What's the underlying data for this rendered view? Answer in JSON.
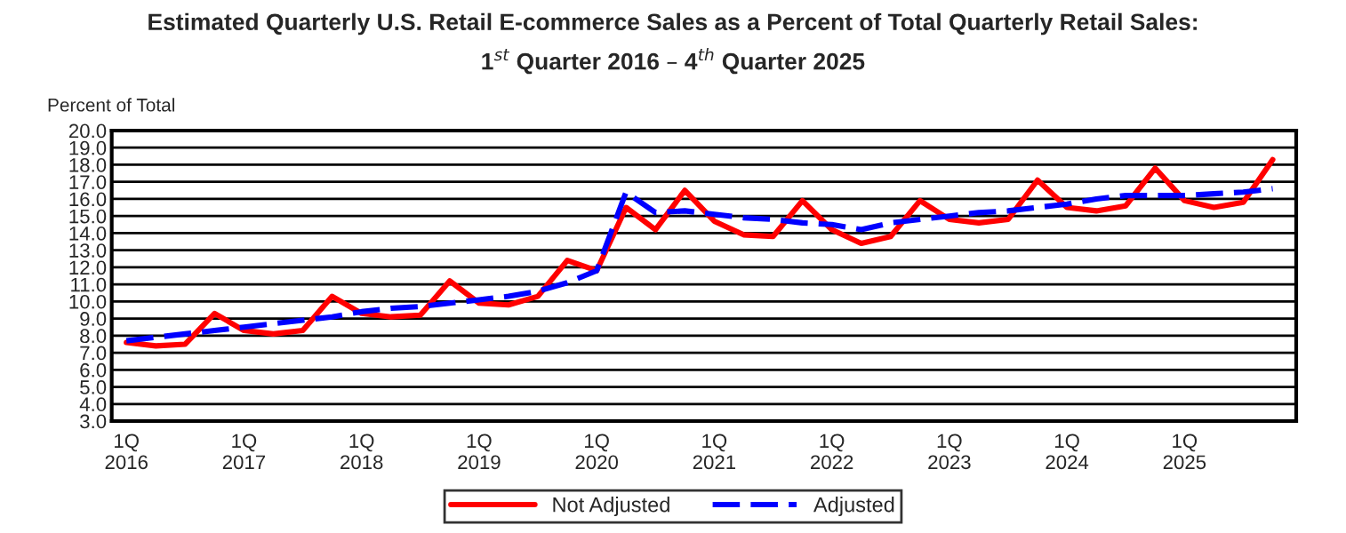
{
  "chart_data": {
    "type": "line",
    "title": "Estimated Quarterly U.S. Retail E-commerce Sales as a Percent of Total Quarterly Retail Sales:",
    "subtitle": "1$^{st}$ Quarter 2016 – 4$^{th}$ Quarter 2025",
    "ylabel": "Percent of Total",
    "categories": [
      "1Q\n2016",
      null,
      null,
      null,
      "1Q\n2017",
      null,
      null,
      null,
      "1Q\n2018",
      null,
      null,
      null,
      "1Q\n2019",
      null,
      null,
      null,
      "1Q\n2020",
      null,
      null,
      null,
      "1Q\n2021",
      null,
      null,
      null,
      "1Q\n2022",
      null,
      null,
      null,
      "1Q\n2023",
      null,
      null,
      null,
      "1Q\n2024",
      null,
      null,
      null,
      "1Q\n2025",
      null,
      null,
      null
    ],
    "series": [
      {
        "name": "Not Adjusted",
        "color": "#ff0000",
        "line_style": "solid",
        "values": [
          7.6,
          7.4,
          7.5,
          9.3,
          8.3,
          8.1,
          8.3,
          10.3,
          9.3,
          9.1,
          9.2,
          11.2,
          9.9,
          9.8,
          10.3,
          12.4,
          11.8,
          15.5,
          14.2,
          16.5,
          14.7,
          13.9,
          13.8,
          15.9,
          14.2,
          13.4,
          13.8,
          15.9,
          14.8,
          14.6,
          14.8,
          17.1,
          15.5,
          15.3,
          15.6,
          17.8,
          15.9,
          15.5,
          15.8,
          18.3
        ]
      },
      {
        "name": "Adjusted",
        "color": "#0000ff",
        "line_style": "dashed",
        "values": [
          7.7,
          7.9,
          8.1,
          8.3,
          8.5,
          8.7,
          8.9,
          9.1,
          9.4,
          9.6,
          9.7,
          9.9,
          10.1,
          10.3,
          10.6,
          11.1,
          11.8,
          16.4,
          15.2,
          15.3,
          15.1,
          14.9,
          14.8,
          14.6,
          14.5,
          14.2,
          14.6,
          14.8,
          15.0,
          15.2,
          15.3,
          15.5,
          15.7,
          16.0,
          16.2,
          16.2,
          16.2,
          16.3,
          16.4,
          16.6
        ]
      }
    ],
    "ylim": [
      3,
      20
    ],
    "yticks": [
      {
        "value": 3,
        "label": "3.0"
      },
      {
        "value": 4,
        "label": "4.0"
      },
      {
        "value": 5,
        "label": "5.0"
      },
      {
        "value": 6,
        "label": "6.0"
      },
      {
        "value": 7,
        "label": "7.0"
      },
      {
        "value": 8,
        "label": "8.0"
      },
      {
        "value": 9,
        "label": "9.0"
      },
      {
        "value": 10,
        "label": "10.0"
      },
      {
        "value": 11,
        "label": "11.0"
      },
      {
        "value": 12,
        "label": "12.0"
      },
      {
        "value": 13,
        "label": "13.0"
      },
      {
        "value": 14,
        "label": "14.0"
      },
      {
        "value": 15,
        "label": "15.0"
      },
      {
        "value": 16,
        "label": "16.0"
      },
      {
        "value": 17,
        "label": "17.0"
      },
      {
        "value": 18,
        "label": "18.0"
      },
      {
        "value": 19,
        "label": "19.0"
      },
      {
        "value": 20,
        "label": "20.0"
      }
    ],
    "grid": "y",
    "legend": "bottom",
    "marker": "none"
  }
}
